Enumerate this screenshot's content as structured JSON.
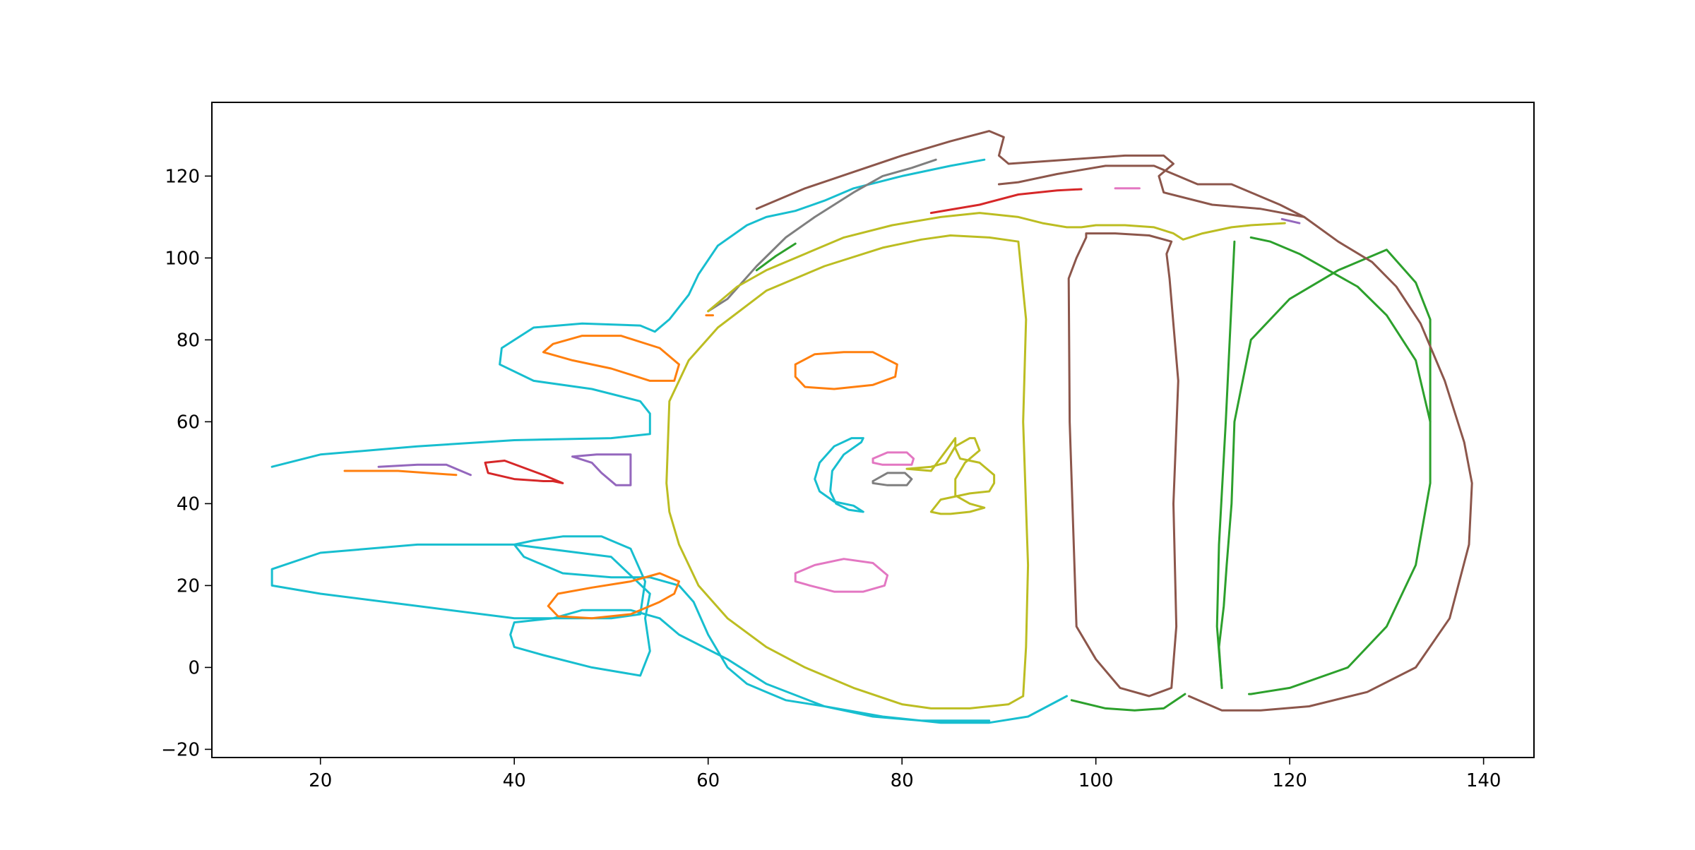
{
  "chart_data": {
    "type": "line",
    "title": "",
    "xlabel": "",
    "ylabel": "",
    "xlim": [
      8.8,
      145.2
    ],
    "ylim": [
      -22,
      138
    ],
    "xticks": [
      20,
      40,
      60,
      80,
      100,
      120,
      140
    ],
    "yticks": [
      -20,
      0,
      20,
      40,
      60,
      80,
      100,
      120
    ],
    "xtick_labels": [
      "20",
      "40",
      "60",
      "80",
      "100",
      "120",
      "140"
    ],
    "ytick_labels": [
      "−20",
      "0",
      "20",
      "40",
      "60",
      "80",
      "100",
      "120"
    ],
    "grid": false,
    "legend": "none",
    "colors": {
      "blue-cyan": "#17becf",
      "orange": "#ff7f0e",
      "green": "#2ca02c",
      "red": "#d62728",
      "purple": "#9467bd",
      "brown": "#8c564b",
      "pink": "#e377c2",
      "gray": "#7f7f7f",
      "olive": "#bcbd22"
    },
    "series": [
      {
        "color": "#17becf",
        "x": [
          97,
          93,
          89,
          84,
          78,
          72,
          66,
          62,
          57,
          55,
          52,
          47,
          44,
          40,
          39.6,
          40,
          43,
          48,
          53,
          54,
          53.5,
          54,
          50,
          40,
          30,
          20,
          15,
          15,
          20,
          30,
          40,
          50,
          53,
          53.5,
          52,
          49,
          45,
          42,
          40,
          41,
          45,
          50,
          54,
          57,
          58.5,
          60,
          62,
          64,
          66,
          68,
          72,
          77,
          82,
          87,
          89
        ],
        "y": [
          -7,
          -12,
          -13.5,
          -13.5,
          -12,
          -9.5,
          -4,
          2,
          8,
          12,
          14,
          14,
          12,
          11,
          8,
          5,
          3,
          0,
          -2,
          4,
          12,
          18,
          27,
          30,
          30,
          28,
          24,
          20,
          18,
          15,
          12,
          12,
          13,
          21,
          29,
          32,
          32,
          31,
          30,
          27,
          23,
          22,
          22,
          20,
          16,
          8,
          0,
          -4,
          -6,
          -8,
          -9.5,
          -12,
          -13,
          -13,
          -13
        ]
      },
      {
        "color": "#17becf",
        "x": [
          15,
          20,
          30,
          40,
          50,
          54,
          54,
          53,
          48,
          42,
          38.5,
          38.7,
          42,
          47,
          53,
          54.5,
          56,
          58,
          59,
          61,
          64,
          66,
          69,
          72,
          75,
          80,
          85,
          88.5
        ],
        "y": [
          49,
          52,
          54,
          55.5,
          56,
          57,
          62,
          65,
          68,
          70,
          74,
          78,
          83,
          84,
          83.5,
          82,
          85,
          91,
          96,
          103,
          108,
          110,
          111.5,
          114,
          117,
          120,
          122.5,
          124
        ]
      },
      {
        "color": "#17becf",
        "x": [
          76,
          74.8,
          73,
          71.5,
          71,
          71.5,
          73,
          75,
          76,
          74.5,
          73.2,
          72.6,
          72.8,
          74,
          75.8,
          76
        ],
        "y": [
          56,
          56,
          54,
          50,
          46,
          43,
          40.5,
          39.5,
          38,
          38.5,
          40,
          43,
          48,
          52,
          55,
          56
        ]
      },
      {
        "color": "#ff7f0e",
        "x": [
          43,
          44,
          47,
          51,
          55,
          57,
          56.5,
          54,
          50,
          46,
          43
        ],
        "y": [
          77,
          79,
          81,
          81,
          78,
          74,
          70,
          70,
          73,
          75,
          77
        ]
      },
      {
        "color": "#ff7f0e",
        "x": [
          43.5,
          44.5,
          48,
          52,
          55,
          57,
          56.5,
          55,
          52,
          48,
          44.5,
          43.5
        ],
        "y": [
          15,
          18,
          19.5,
          21,
          23,
          21,
          18,
          16,
          13,
          12,
          12.5,
          15
        ]
      },
      {
        "color": "#ff7f0e",
        "x": [
          69,
          71,
          74,
          77,
          79.5,
          79.3,
          77,
          73,
          70,
          69,
          69
        ],
        "y": [
          74,
          76.5,
          77,
          77,
          74,
          71,
          69,
          68,
          68.5,
          71,
          74
        ]
      },
      {
        "color": "#ff7f0e",
        "x": [
          22.5,
          28,
          34
        ],
        "y": [
          48,
          48,
          47
        ]
      },
      {
        "color": "#ff7f0e",
        "x": [
          59.8,
          60.5
        ],
        "y": [
          86,
          86
        ]
      },
      {
        "color": "#2ca02c",
        "x": [
          113,
          112.7,
          113.2,
          113.5,
          114,
          114.3,
          116,
          120,
          125,
          130,
          133,
          134.5,
          134.5,
          133,
          130,
          126,
          120,
          116,
          115.8
        ],
        "y": [
          -5,
          5,
          15,
          25,
          40,
          60,
          80,
          90,
          97,
          102,
          94,
          85,
          45,
          25,
          10,
          0,
          -5,
          -6.5,
          -6.5
        ]
      },
      {
        "color": "#2ca02c",
        "x": [
          113,
          112.5,
          112.7,
          113.4,
          114.3
        ],
        "y": [
          -5,
          10,
          30,
          60,
          104
        ]
      },
      {
        "color": "#2ca02c",
        "x": [
          116,
          118,
          121,
          124,
          127,
          130,
          133,
          134.5
        ],
        "y": [
          105,
          104,
          101,
          97,
          93,
          86,
          75,
          60
        ]
      },
      {
        "color": "#2ca02c",
        "x": [
          97.5,
          101,
          104,
          107,
          109.2
        ],
        "y": [
          -8,
          -10,
          -10.5,
          -10,
          -6.5
        ]
      },
      {
        "color": "#2ca02c",
        "x": [
          65,
          67,
          69
        ],
        "y": [
          97,
          100.5,
          103.5
        ]
      },
      {
        "color": "#d62728",
        "x": [
          37,
          37.3,
          40,
          43,
          44,
          45,
          43,
          39,
          37
        ],
        "y": [
          50,
          47.5,
          46,
          45.5,
          45.5,
          45,
          47,
          50.5,
          50
        ]
      },
      {
        "color": "#d62728",
        "x": [
          83,
          88,
          92,
          96,
          98.5
        ],
        "y": [
          111,
          113,
          115.5,
          116.5,
          116.8
        ]
      },
      {
        "color": "#9467bd",
        "x": [
          26,
          30,
          33,
          34.5,
          35.5
        ],
        "y": [
          49,
          49.5,
          49.5,
          48,
          47
        ]
      },
      {
        "color": "#9467bd",
        "x": [
          46,
          48,
          49,
          50.5,
          52,
          52,
          52,
          49.5,
          48.5,
          46
        ],
        "y": [
          51.5,
          50,
          47.5,
          44.5,
          44.5,
          48,
          52,
          52,
          52,
          51.5
        ]
      },
      {
        "color": "#9467bd",
        "x": [
          119.2,
          121
        ],
        "y": [
          109.5,
          108.5
        ]
      },
      {
        "color": "#8c564b",
        "x": [
          65,
          70,
          75,
          80,
          85,
          89,
          90.5,
          90,
          91,
          97,
          103,
          107,
          108,
          106.5,
          107,
          112,
          117,
          121.5,
          125,
          128.5,
          131,
          133.5,
          136,
          138,
          138.8,
          138.5,
          136.5,
          133,
          128,
          122,
          117,
          113,
          109.6
        ],
        "y": [
          112,
          117,
          121,
          125,
          128.5,
          131,
          129.5,
          125,
          123,
          124,
          125,
          125,
          123,
          120,
          116,
          113,
          112,
          110,
          104,
          99,
          93,
          84,
          70,
          55,
          45,
          30,
          12,
          0,
          -6,
          -9.5,
          -10.5,
          -10.5,
          -7
        ]
      },
      {
        "color": "#8c564b",
        "x": [
          90,
          92,
          96,
          101,
          106,
          108.5,
          110.5,
          114,
          116,
          119,
          121.5
        ],
        "y": [
          118,
          118.5,
          120.5,
          122.5,
          122.5,
          120,
          118,
          118,
          116,
          113,
          110
        ]
      },
      {
        "color": "#8c564b",
        "x": [
          99,
          98,
          97.2,
          97.3,
          98,
          100,
          102.5,
          105.5,
          107.8,
          108.3,
          108,
          108.5,
          107.6,
          107.3,
          107.8,
          105.5,
          102,
          99,
          99
        ],
        "y": [
          105,
          100,
          95,
          60,
          10,
          2,
          -5,
          -7,
          -5,
          10,
          40,
          70,
          95,
          101,
          104,
          105.5,
          106,
          106,
          105
        ]
      },
      {
        "color": "#e377c2",
        "x": [
          69,
          71,
          74,
          77,
          78.5,
          78.2,
          76,
          73,
          70.5,
          69,
          69
        ],
        "y": [
          23,
          25,
          26.5,
          25.5,
          22.5,
          20,
          18.5,
          18.5,
          20,
          21,
          23
        ]
      },
      {
        "color": "#e377c2",
        "x": [
          77,
          78.5,
          80.5,
          81.2,
          81,
          79.5,
          78,
          77,
          77
        ],
        "y": [
          51,
          52.5,
          52.5,
          51,
          49.5,
          49.5,
          49.5,
          50,
          51
        ]
      },
      {
        "color": "#e377c2",
        "x": [
          102,
          104.5
        ],
        "y": [
          117,
          117
        ]
      },
      {
        "color": "#7f7f7f",
        "x": [
          77,
          78.5,
          80.3,
          81,
          80.5,
          78.5,
          77,
          77
        ],
        "y": [
          45.5,
          47.5,
          47.5,
          46,
          44.5,
          44.5,
          45,
          45.5
        ]
      },
      {
        "color": "#7f7f7f",
        "x": [
          60,
          62,
          65,
          68,
          71,
          75,
          78,
          81,
          83.5
        ],
        "y": [
          87,
          90,
          98,
          105,
          110,
          116,
          120,
          122,
          124
        ]
      },
      {
        "color": "#bcbd22",
        "x": [
          60,
          63,
          66,
          70,
          74,
          79,
          84,
          88,
          92,
          94.5,
          97,
          98.5,
          100,
          103,
          106,
          108,
          109,
          111,
          114,
          116,
          119.5
        ],
        "y": [
          87,
          93,
          97,
          101,
          105,
          108,
          110,
          111,
          110,
          108.5,
          107.5,
          107.5,
          108,
          108,
          107.5,
          106,
          104.5,
          106,
          107.5,
          108,
          108.5
        ]
      },
      {
        "color": "#bcbd22",
        "x": [
          92.5,
          92.8,
          93,
          92.5,
          92.8,
          92,
          89,
          85,
          82,
          78,
          72,
          66,
          61,
          58,
          56,
          55.7,
          56,
          57,
          59,
          62,
          66,
          70,
          75,
          80,
          83,
          87,
          91,
          92.5
        ],
        "y": [
          -7,
          5,
          25,
          60,
          85,
          104,
          105,
          105.5,
          104.5,
          102.5,
          98,
          92,
          83,
          75,
          65,
          45,
          38,
          30,
          20,
          12,
          5,
          0,
          -5,
          -9,
          -10,
          -10,
          -9,
          -7
        ]
      },
      {
        "color": "#bcbd22",
        "x": [
          80.5,
          83,
          84.5,
          85.5,
          87,
          87.5,
          88,
          86.5,
          85.5,
          85.5,
          87,
          88.5,
          87,
          85,
          84,
          83,
          84,
          87,
          89,
          89.5,
          89.5,
          88,
          86,
          85.5,
          85.5,
          83,
          80.5
        ],
        "y": [
          48.5,
          49,
          50,
          54,
          56,
          56,
          53,
          50,
          46,
          42,
          40,
          39,
          38,
          37.5,
          37.5,
          38,
          41,
          42.5,
          43,
          45,
          47,
          50,
          51,
          53.5,
          56,
          48,
          48.5
        ]
      }
    ]
  }
}
